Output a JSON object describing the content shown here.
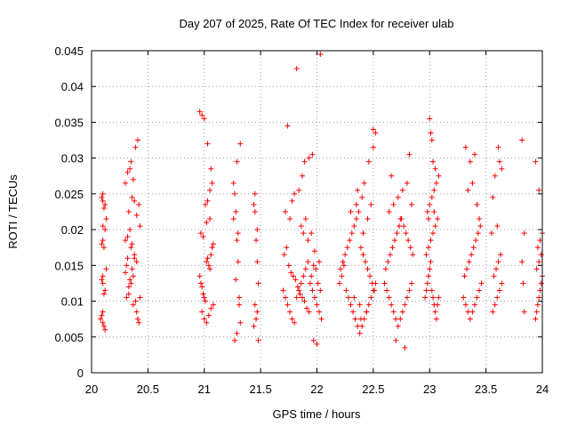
{
  "chart_data": {
    "type": "scatter",
    "title": "Day 207 of 2025, Rate Of TEC Index for receiver ulab",
    "xlabel": "GPS time / hours",
    "ylabel": "ROTI / TECUs",
    "xlim": [
      20,
      24
    ],
    "ylim": [
      0,
      0.045
    ],
    "xticks": [
      20,
      20.5,
      21,
      21.5,
      22,
      22.5,
      23,
      23.5,
      24
    ],
    "xtick_labels": [
      "20",
      "20.5",
      "21",
      "21.5",
      "22",
      "22.5",
      "23",
      "23.5",
      "24"
    ],
    "yticks": [
      0,
      0.005,
      0.01,
      0.015,
      0.02,
      0.025,
      0.03,
      0.035,
      0.04,
      0.045
    ],
    "ytick_labels": [
      "0",
      "0.005",
      "0.01",
      "0.015",
      "0.02",
      "0.025",
      "0.03",
      "0.035",
      "0.04",
      "0.045"
    ],
    "grid": true,
    "marker": "+",
    "color": "#ff0000",
    "series": [
      {
        "name": "ROTI",
        "x": [
          20.08,
          20.09,
          20.1,
          20.1,
          20.11,
          20.12,
          20.1,
          20.09,
          20.11,
          20.12,
          20.1,
          20.09,
          20.1,
          20.11,
          20.1,
          20.12,
          20.13,
          20.1,
          20.09,
          20.1,
          20.11,
          20.12,
          20.13,
          20.3,
          20.31,
          20.32,
          20.33,
          20.34,
          20.35,
          20.36,
          20.37,
          20.38,
          20.4,
          20.3,
          20.32,
          20.34,
          20.36,
          20.38,
          20.31,
          20.33,
          20.35,
          20.37,
          20.39,
          20.4,
          20.41,
          20.42,
          20.43,
          20.3,
          20.32,
          20.34,
          20.36,
          20.38,
          20.4,
          20.42,
          20.35,
          20.37,
          20.39,
          20.33,
          20.41,
          20.43,
          20.96,
          20.97,
          20.98,
          20.99,
          21.0,
          21.01,
          21.02,
          21.03,
          21.04,
          21.05,
          21.06,
          21.07,
          21.08,
          20.97,
          20.99,
          21.01,
          21.03,
          21.05,
          21.07,
          20.98,
          21.0,
          21.02,
          21.04,
          21.06,
          21.08,
          20.96,
          20.98,
          21.0,
          21.03,
          21.06,
          21.02,
          21.05,
          21.26,
          21.27,
          21.28,
          21.29,
          21.3,
          21.31,
          21.32,
          21.27,
          21.29,
          21.31,
          21.28,
          21.3,
          21.26,
          21.32,
          21.29,
          21.44,
          21.45,
          21.46,
          21.47,
          21.48,
          21.45,
          21.47,
          21.44,
          21.46,
          21.48,
          21.45,
          21.47,
          21.7,
          21.72,
          21.74,
          21.76,
          21.78,
          21.8,
          21.82,
          21.84,
          21.86,
          21.88,
          21.9,
          21.92,
          21.94,
          21.96,
          21.98,
          22.0,
          22.02,
          22.04,
          21.71,
          21.73,
          21.75,
          21.77,
          21.79,
          21.81,
          21.83,
          21.85,
          21.87,
          21.89,
          21.91,
          21.93,
          21.95,
          21.97,
          21.99,
          22.01,
          22.03,
          21.86,
          21.88,
          21.9,
          21.92,
          21.95,
          21.98,
          22.02,
          21.78,
          21.84,
          21.87,
          21.89,
          21.93,
          21.97,
          22.0,
          21.72,
          21.76,
          21.8,
          21.96,
          22.03,
          21.74,
          21.82,
          22.2,
          22.22,
          22.24,
          22.26,
          22.28,
          22.3,
          22.32,
          22.34,
          22.36,
          22.38,
          22.4,
          22.42,
          22.44,
          22.46,
          22.48,
          22.5,
          22.52,
          22.21,
          22.23,
          22.25,
          22.27,
          22.29,
          22.31,
          22.33,
          22.35,
          22.37,
          22.39,
          22.41,
          22.43,
          22.45,
          22.47,
          22.49,
          22.51,
          22.3,
          22.35,
          22.4,
          22.45,
          22.36,
          22.42,
          22.48,
          22.5,
          22.52,
          22.33,
          22.38,
          22.44,
          22.46,
          22.5,
          22.41,
          22.39,
          22.6,
          22.62,
          22.64,
          22.66,
          22.68,
          22.7,
          22.72,
          22.74,
          22.76,
          22.78,
          22.8,
          22.82,
          22.84,
          22.61,
          22.63,
          22.65,
          22.67,
          22.69,
          22.71,
          22.73,
          22.75,
          22.77,
          22.79,
          22.81,
          22.83,
          22.85,
          22.64,
          22.68,
          22.72,
          22.76,
          22.8,
          22.84,
          22.66,
          22.74,
          22.82,
          22.78,
          22.7,
          22.96,
          22.97,
          22.98,
          22.99,
          23.0,
          23.01,
          23.02,
          23.03,
          23.04,
          23.05,
          23.06,
          23.07,
          23.08,
          22.97,
          22.99,
          23.01,
          23.03,
          23.05,
          23.07,
          22.98,
          23.0,
          23.02,
          23.04,
          23.06,
          23.08,
          23.0,
          23.02,
          23.01,
          23.03,
          23.05,
          22.99,
          23.04,
          23.3,
          23.32,
          23.34,
          23.36,
          23.38,
          23.4,
          23.42,
          23.44,
          23.46,
          23.31,
          23.33,
          23.35,
          23.37,
          23.39,
          23.41,
          23.43,
          23.45,
          23.34,
          23.38,
          23.42,
          23.36,
          23.4,
          23.44,
          23.32,
          23.46,
          23.56,
          23.58,
          23.6,
          23.62,
          23.64,
          23.57,
          23.59,
          23.61,
          23.63,
          23.55,
          23.6,
          23.62,
          23.58,
          23.64,
          23.56,
          23.61,
          23.82,
          23.84,
          23.82,
          23.83,
          23.84,
          23.94,
          23.95,
          23.96,
          23.97,
          23.98,
          23.99,
          24.0,
          23.95,
          23.97,
          23.99,
          23.96,
          23.98,
          24.0,
          23.94,
          23.97
        ],
        "y": [
          0.0075,
          0.008,
          0.007,
          0.0085,
          0.0065,
          0.006,
          0.0125,
          0.013,
          0.011,
          0.0115,
          0.0135,
          0.018,
          0.0185,
          0.0175,
          0.0205,
          0.02,
          0.0215,
          0.024,
          0.0245,
          0.025,
          0.023,
          0.0235,
          0.0145,
          0.014,
          0.015,
          0.016,
          0.012,
          0.013,
          0.0175,
          0.0145,
          0.0135,
          0.016,
          0.0155,
          0.0185,
          0.019,
          0.02,
          0.018,
          0.0165,
          0.0105,
          0.011,
          0.0125,
          0.0095,
          0.01,
          0.0085,
          0.0075,
          0.007,
          0.0105,
          0.0265,
          0.028,
          0.0285,
          0.0245,
          0.024,
          0.022,
          0.0235,
          0.0295,
          0.027,
          0.0315,
          0.0225,
          0.0325,
          0.0205,
          0.0135,
          0.0125,
          0.012,
          0.011,
          0.0105,
          0.01,
          0.0155,
          0.016,
          0.015,
          0.0145,
          0.0165,
          0.0175,
          0.018,
          0.0195,
          0.019,
          0.0235,
          0.024,
          0.0255,
          0.0265,
          0.0085,
          0.0075,
          0.007,
          0.008,
          0.009,
          0.0095,
          0.0365,
          0.036,
          0.0355,
          0.032,
          0.0285,
          0.021,
          0.0215,
          0.0265,
          0.025,
          0.0225,
          0.0185,
          0.0155,
          0.0105,
          0.007,
          0.0045,
          0.0055,
          0.0095,
          0.013,
          0.0195,
          0.0215,
          0.032,
          0.0295,
          0.0235,
          0.0225,
          0.0185,
          0.0155,
          0.0125,
          0.0095,
          0.0085,
          0.0065,
          0.0075,
          0.0045,
          0.025,
          0.02,
          0.0115,
          0.0105,
          0.0095,
          0.0085,
          0.0075,
          0.007,
          0.0105,
          0.0115,
          0.0125,
          0.0135,
          0.0145,
          0.0155,
          0.0125,
          0.0115,
          0.0105,
          0.0095,
          0.0085,
          0.0075,
          0.0165,
          0.0175,
          0.015,
          0.014,
          0.0135,
          0.013,
          0.012,
          0.011,
          0.0105,
          0.01,
          0.009,
          0.0085,
          0.0135,
          0.015,
          0.0145,
          0.0125,
          0.0115,
          0.0205,
          0.0195,
          0.0215,
          0.0185,
          0.0195,
          0.017,
          0.0155,
          0.024,
          0.0255,
          0.0275,
          0.0295,
          0.03,
          0.0045,
          0.004,
          0.0225,
          0.0215,
          0.025,
          0.0305,
          0.0445,
          0.0345,
          0.0425,
          0.0125,
          0.0135,
          0.015,
          0.0115,
          0.0105,
          0.0095,
          0.0085,
          0.0075,
          0.0065,
          0.0055,
          0.0065,
          0.0075,
          0.0085,
          0.0095,
          0.0105,
          0.0115,
          0.0125,
          0.0145,
          0.0155,
          0.0165,
          0.0175,
          0.0185,
          0.0195,
          0.0205,
          0.0215,
          0.0225,
          0.0175,
          0.0165,
          0.0155,
          0.0145,
          0.0135,
          0.0125,
          0.0115,
          0.0225,
          0.0235,
          0.0245,
          0.0215,
          0.0255,
          0.0265,
          0.0235,
          0.0315,
          0.0335,
          0.0105,
          0.0095,
          0.0085,
          0.0295,
          0.034,
          0.0195,
          0.0075,
          0.0125,
          0.0115,
          0.0105,
          0.0095,
          0.0085,
          0.0075,
          0.0065,
          0.0075,
          0.0085,
          0.0095,
          0.0105,
          0.0115,
          0.0125,
          0.0145,
          0.0155,
          0.0165,
          0.0175,
          0.0185,
          0.0195,
          0.0205,
          0.0215,
          0.0205,
          0.0195,
          0.0185,
          0.0175,
          0.0165,
          0.0225,
          0.0235,
          0.0245,
          0.0255,
          0.0265,
          0.0235,
          0.0275,
          0.0215,
          0.0305,
          0.0035,
          0.0045,
          0.0105,
          0.0115,
          0.0125,
          0.0135,
          0.0145,
          0.0155,
          0.0115,
          0.0105,
          0.0095,
          0.0085,
          0.0075,
          0.0095,
          0.0105,
          0.0165,
          0.0175,
          0.0185,
          0.0195,
          0.0205,
          0.0215,
          0.0225,
          0.0235,
          0.0245,
          0.0255,
          0.0265,
          0.0275,
          0.0355,
          0.0325,
          0.0335,
          0.0295,
          0.0285,
          0.0215,
          0.0225,
          0.0105,
          0.0095,
          0.0085,
          0.0075,
          0.0085,
          0.0095,
          0.0105,
          0.0115,
          0.0125,
          0.0135,
          0.0145,
          0.0155,
          0.0165,
          0.0175,
          0.0185,
          0.0195,
          0.0205,
          0.0255,
          0.0265,
          0.0235,
          0.0295,
          0.0305,
          0.0215,
          0.0315,
          0.0125,
          0.0085,
          0.0095,
          0.0105,
          0.0115,
          0.0125,
          0.0135,
          0.0145,
          0.0155,
          0.0165,
          0.0195,
          0.0205,
          0.0295,
          0.0275,
          0.0285,
          0.0245,
          0.0315,
          0.0325,
          0.0195,
          0.0155,
          0.0125,
          0.0085,
          0.0075,
          0.0085,
          0.0095,
          0.0105,
          0.0115,
          0.0125,
          0.0135,
          0.0145,
          0.0155,
          0.0165,
          0.0175,
          0.0185,
          0.0195,
          0.0295,
          0.0255
        ]
      }
    ]
  }
}
